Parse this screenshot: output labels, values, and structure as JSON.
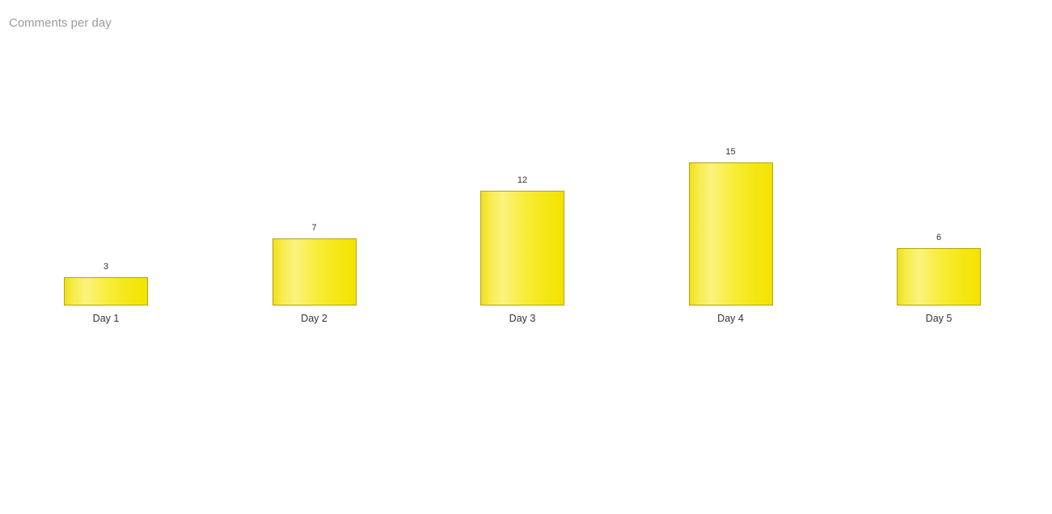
{
  "widget": {
    "title": "Comments per day"
  },
  "chart_data": {
    "type": "bar",
    "title": "Comments per day",
    "categories": [
      "Day 1",
      "Day 2",
      "Day 3",
      "Day 4",
      "Day 5"
    ],
    "values": [
      3,
      7,
      12,
      15,
      6
    ],
    "value_labels": [
      "3",
      "7",
      "12",
      "15",
      "6"
    ],
    "xlabel": "",
    "ylabel": "",
    "ylim": [
      0,
      15
    ],
    "grid": false,
    "axes_visible": false,
    "legend": false,
    "orientation": "vertical",
    "colors": {
      "bar_fill": "#f5e50a",
      "bar_highlight": "#fbf37e",
      "bar_border": "#b3a40f",
      "value_label": "#333333",
      "category_label": "#333333",
      "title": "#9b9b9b",
      "background": "#ffffff"
    }
  }
}
